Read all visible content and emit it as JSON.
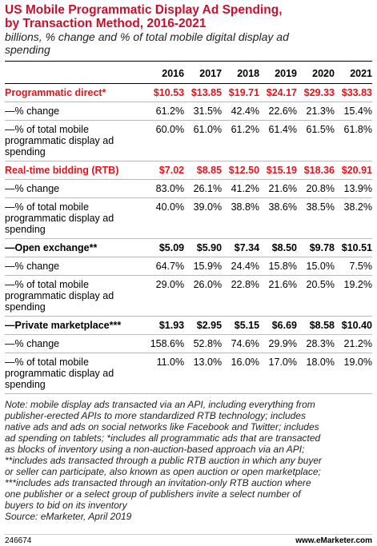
{
  "header": {
    "title": [
      "US Mobile Programmatic Display Ad Spending,",
      "by Transaction Method, 2016-2021"
    ],
    "subtitle": [
      "billions, % change and % of total mobile digital display ad",
      "spending"
    ]
  },
  "table": {
    "columns": [
      "2016",
      "2017",
      "2018",
      "2019",
      "2020",
      "2021"
    ],
    "rows": [
      [
        "Programmatic direct*",
        "$10.53",
        "$13.85",
        "$19.71",
        "$24.17",
        "$29.33",
        "$33.83"
      ],
      [
        "—% change",
        "61.2%",
        "31.5%",
        "42.4%",
        "22.6%",
        "21.3%",
        "15.4%"
      ],
      [
        "—% of total mobile programmatic display ad spending",
        "60.0%",
        "61.0%",
        "61.2%",
        "61.4%",
        "61.5%",
        "61.8%"
      ],
      [
        "Real-time bidding (RTB)",
        "$7.02",
        "$8.85",
        "$12.50",
        "$15.19",
        "$18.36",
        "$20.91"
      ],
      [
        "—% change",
        "83.0%",
        "26.1%",
        "41.2%",
        "21.6%",
        "20.8%",
        "13.9%"
      ],
      [
        "—% of total mobile programmatic display ad spending",
        "40.0%",
        "39.0%",
        "38.8%",
        "38.6%",
        "38.5%",
        "38.2%"
      ],
      [
        "—Open exchange**",
        "$5.09",
        "$5.90",
        "$7.34",
        "$8.50",
        "$9.78",
        "$10.51"
      ],
      [
        "—% change",
        "64.7%",
        "15.9%",
        "24.4%",
        "15.8%",
        "15.0%",
        "7.5%"
      ],
      [
        "—% of total mobile programmatic display ad spending",
        "29.0%",
        "26.0%",
        "22.8%",
        "21.6%",
        "20.5%",
        "19.2%"
      ],
      [
        "—Private marketplace***",
        "$1.93",
        "$2.95",
        "$5.15",
        "$6.69",
        "$8.58",
        "$10.40"
      ],
      [
        "—% change",
        "158.6%",
        "52.8%",
        "74.6%",
        "29.9%",
        "28.3%",
        "21.2%"
      ],
      [
        "—% of total mobile programmatic display ad spending",
        "11.0%",
        "13.0%",
        "16.0%",
        "17.0%",
        "18.0%",
        "19.0%"
      ]
    ]
  },
  "notes": [
    "Note: mobile display ads transacted via an API, including everything from",
    "publisher-erected APIs to more standardized RTB technology; includes",
    "native ads and ads on social networks like Facebook and Twitter; includes",
    "ad spending on tablets; *includes all programmatic ads that are transacted",
    "as blocks of inventory using a non-auction-based approach via an API;",
    "**includes ads transacted through a public RTB auction in which any buyer",
    "or seller can participate, also known as open auction or open marketplace;",
    "***includes ads transacted through an invitation-only RTB auction where",
    "one publisher or a select group of publishers invite a select number of",
    "buyers to bid on its inventory",
    "Source: eMarketer, April 2019"
  ],
  "footer": {
    "id": "246674",
    "brand": "www.eMarketer.com"
  }
}
